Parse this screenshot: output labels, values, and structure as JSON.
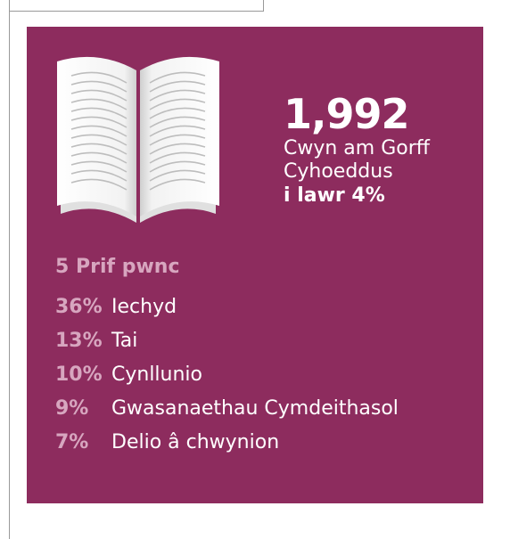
{
  "headline": {
    "number": "1,992",
    "line1": "Cwyn am Gorff",
    "line2": "Cyhoeddus",
    "change": "i lawr 4%"
  },
  "topics": {
    "title": "5 Prif pwnc",
    "items": [
      {
        "percent": "36%",
        "name": "Iechyd"
      },
      {
        "percent": "13%",
        "name": "Tai"
      },
      {
        "percent": "10%",
        "name": "Cynllunio"
      },
      {
        "percent": "9%",
        "name": "Gwasanaethau Cymdeithasol"
      },
      {
        "percent": "7%",
        "name": "Delio â chwynion"
      }
    ]
  }
}
